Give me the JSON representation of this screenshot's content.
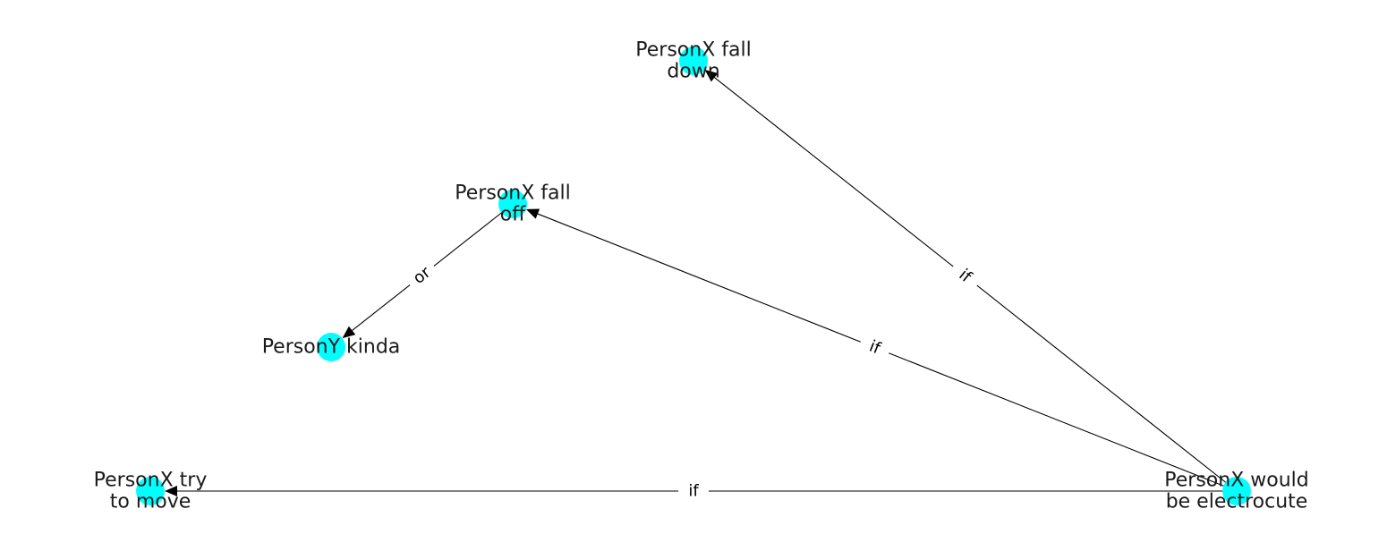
{
  "colors": {
    "node_fill": "#00ffff",
    "edge": "#000000",
    "label": "#1a1a1a",
    "background": "#ffffff"
  },
  "nodes": [
    {
      "id": "fall_down",
      "label_lines": [
        "PersonX fall",
        "down"
      ]
    },
    {
      "id": "fall_off",
      "label_lines": [
        "PersonX fall",
        "off"
      ]
    },
    {
      "id": "kinda",
      "label_lines": [
        "PersonY kinda"
      ]
    },
    {
      "id": "try_move",
      "label_lines": [
        "PersonX try",
        "to move"
      ]
    },
    {
      "id": "electrocute",
      "label_lines": [
        "PersonX would",
        "be electrocute"
      ]
    }
  ],
  "edges": [
    {
      "source": "electrocute",
      "target": "fall_down",
      "label": "if"
    },
    {
      "source": "electrocute",
      "target": "fall_off",
      "label": "if"
    },
    {
      "source": "electrocute",
      "target": "try_move",
      "label": "if"
    },
    {
      "source": "fall_off",
      "target": "kinda",
      "label": "or"
    }
  ]
}
